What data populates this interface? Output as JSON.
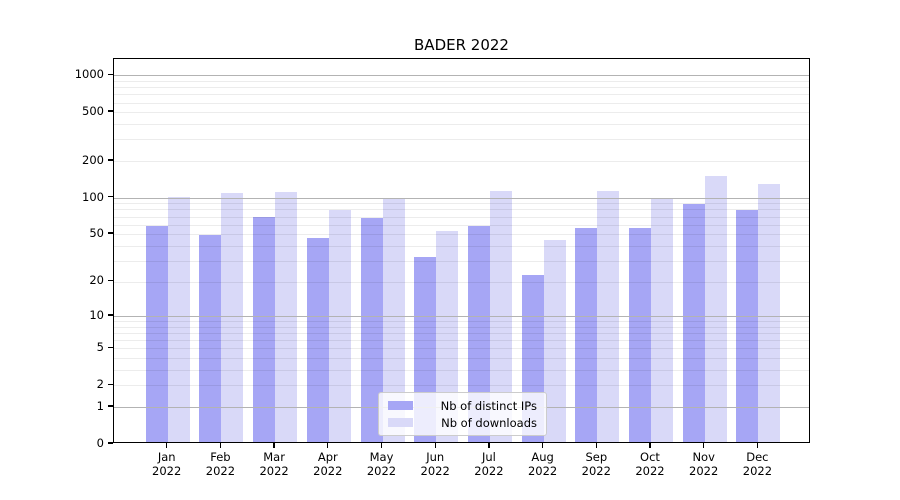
{
  "figure_title": "BADER 2022",
  "chart_data": {
    "type": "bar",
    "title": "BADER 2022",
    "subtitle": "",
    "yscale": "log1p (symlog-like, 0 at baseline)",
    "grid": "minor and major horizontal gridlines drawn above bars",
    "legend_position": "inside, lower center of plot",
    "categories": [
      "Jan",
      "Feb",
      "Mar",
      "Apr",
      "May",
      "Jun",
      "Jul",
      "Aug",
      "Sep",
      "Oct",
      "Nov",
      "Dec"
    ],
    "category_year": "2022",
    "series": [
      {
        "name": "Nb of distinct IPs",
        "color": "#a6a6f5",
        "values": [
          56,
          47,
          67,
          45,
          65,
          31,
          56,
          22,
          54,
          54,
          86,
          77
        ]
      },
      {
        "name": "Nb of downloads",
        "color": "#d9d9f8",
        "values": [
          97,
          105,
          107,
          77,
          95,
          51,
          109,
          43,
          110,
          95,
          145,
          124
        ]
      }
    ],
    "xlabel": "",
    "ylabel": "",
    "y_ticks": [
      0,
      1,
      2,
      5,
      10,
      20,
      50,
      100,
      200,
      500,
      1000
    ],
    "y_major_gridlines": [
      1,
      10,
      100,
      1000
    ],
    "y_minor_gridlines": [
      2,
      3,
      4,
      5,
      6,
      7,
      8,
      9,
      20,
      30,
      40,
      50,
      60,
      70,
      80,
      90,
      200,
      300,
      400,
      500,
      600,
      700,
      800,
      900
    ],
    "ylim": [
      0,
      1356
    ]
  },
  "colors": {
    "major_grid": "#b3b3b3",
    "minor_grid": "#ececec",
    "spine": "#000000",
    "text": "#000000"
  }
}
